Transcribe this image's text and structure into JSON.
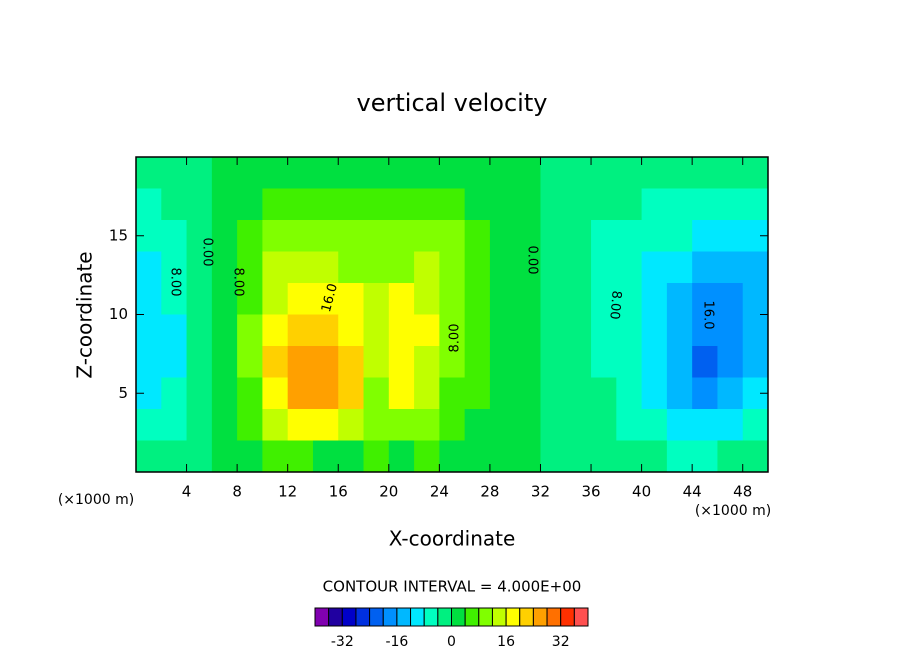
{
  "chart_data": {
    "type": "contour",
    "title": "vertical velocity",
    "x_label": "X-coordinate",
    "y_label": "Z-coordinate",
    "x_unit": "(×1000 m)",
    "y_unit": "(×1000 m)",
    "xlim": [
      0,
      50
    ],
    "ylim": [
      0,
      20
    ],
    "xticks": [
      4,
      8,
      12,
      16,
      20,
      24,
      28,
      32,
      36,
      40,
      44,
      48
    ],
    "yticks": [
      5,
      10,
      15
    ],
    "x": [
      1,
      3,
      5,
      7,
      9,
      11,
      13,
      15,
      17,
      19,
      21,
      23,
      25,
      27,
      29,
      31,
      33,
      35,
      37,
      39,
      41,
      43,
      45,
      47,
      49
    ],
    "y": [
      19,
      17,
      15,
      13,
      11,
      9,
      7,
      5,
      3,
      1
    ],
    "z": [
      [
        -3,
        -2,
        -1,
        1,
        2,
        2,
        2,
        2,
        2,
        2,
        2,
        2,
        2,
        1,
        1,
        1,
        -1,
        -1,
        -1,
        -1,
        -2,
        -2,
        -3,
        -3,
        -4
      ],
      [
        -5,
        -4,
        -2,
        1,
        3,
        5,
        6,
        6,
        6,
        6,
        6,
        5,
        4,
        3,
        2,
        1,
        -1,
        -2,
        -3,
        -4,
        -5,
        -6,
        -6,
        -7,
        -8
      ],
      [
        -7,
        -6,
        -3,
        1,
        5,
        8,
        10,
        10,
        8,
        8,
        9,
        9,
        8,
        5,
        2,
        0,
        -2,
        -3,
        -5,
        -6,
        -7,
        -8,
        -10,
        -11,
        -10
      ],
      [
        -9,
        -7,
        -3,
        1,
        6,
        12,
        14,
        13,
        10,
        11,
        11,
        12,
        10,
        6,
        2,
        0,
        -2,
        -4,
        -5,
        -7,
        -9,
        -12,
        -14,
        -15,
        -13
      ],
      [
        -11,
        -8,
        -3,
        1,
        7,
        15,
        18,
        17,
        16,
        13,
        17,
        14,
        10,
        6,
        2,
        0,
        -2,
        -4,
        -5,
        -7,
        -10,
        -14,
        -18,
        -18,
        -14
      ],
      [
        -12,
        -9,
        -4,
        1,
        8,
        18,
        22,
        20,
        18,
        12,
        18,
        16,
        11,
        6,
        2,
        0,
        -2,
        -4,
        -5,
        -8,
        -11,
        -16,
        -20,
        -19,
        -14
      ],
      [
        -12,
        -9,
        -4,
        1,
        8,
        20,
        25,
        26,
        20,
        12,
        18,
        14,
        9,
        5,
        2,
        0,
        -2,
        -3,
        -5,
        -8,
        -11,
        -16,
        -21,
        -19,
        -14
      ],
      [
        -11,
        -8,
        -4,
        1,
        7,
        18,
        24,
        25,
        20,
        10,
        16,
        12,
        7,
        4,
        2,
        0,
        -2,
        -3,
        -4,
        -7,
        -10,
        -15,
        -19,
        -16,
        -12
      ],
      [
        -8,
        -6,
        -3,
        0,
        4,
        12,
        16,
        16,
        13,
        8,
        10,
        8,
        5,
        3,
        1,
        0,
        -1,
        -2,
        -4,
        -6,
        -8,
        -11,
        -12,
        -10,
        -8
      ],
      [
        -4,
        -3,
        -1,
        0,
        2,
        4,
        4,
        3,
        2,
        5,
        3,
        4,
        2,
        1,
        0,
        0,
        -1,
        -1,
        -3,
        -4,
        -4,
        -5,
        -5,
        -4,
        -3
      ]
    ],
    "levels": [
      -40,
      -36,
      -32,
      -28,
      -24,
      -20,
      -16,
      -12,
      -8,
      -4,
      0,
      4,
      8,
      12,
      16,
      20,
      24,
      28,
      32,
      36,
      40
    ],
    "colors": [
      "#8000b0",
      "#2000a0",
      "#0000c8",
      "#0030e0",
      "#0060f0",
      "#0090ff",
      "#00b8ff",
      "#00e8ff",
      "#00ffc0",
      "#00f080",
      "#00e040",
      "#40f000",
      "#80ff00",
      "#c0ff00",
      "#ffff00",
      "#ffd000",
      "#ffa000",
      "#ff7000",
      "#ff3000",
      "#ff5050",
      "#ff9090"
    ],
    "contour_labels": [
      "8.00",
      "0.00",
      "8.00",
      "16.0",
      "8.00",
      "0.00",
      "8.00",
      "16.0"
    ],
    "contour_interval_label": "CONTOUR INTERVAL = 4.000E+00",
    "colorbar_ticks": [
      -32,
      -16,
      0,
      16,
      32
    ]
  }
}
